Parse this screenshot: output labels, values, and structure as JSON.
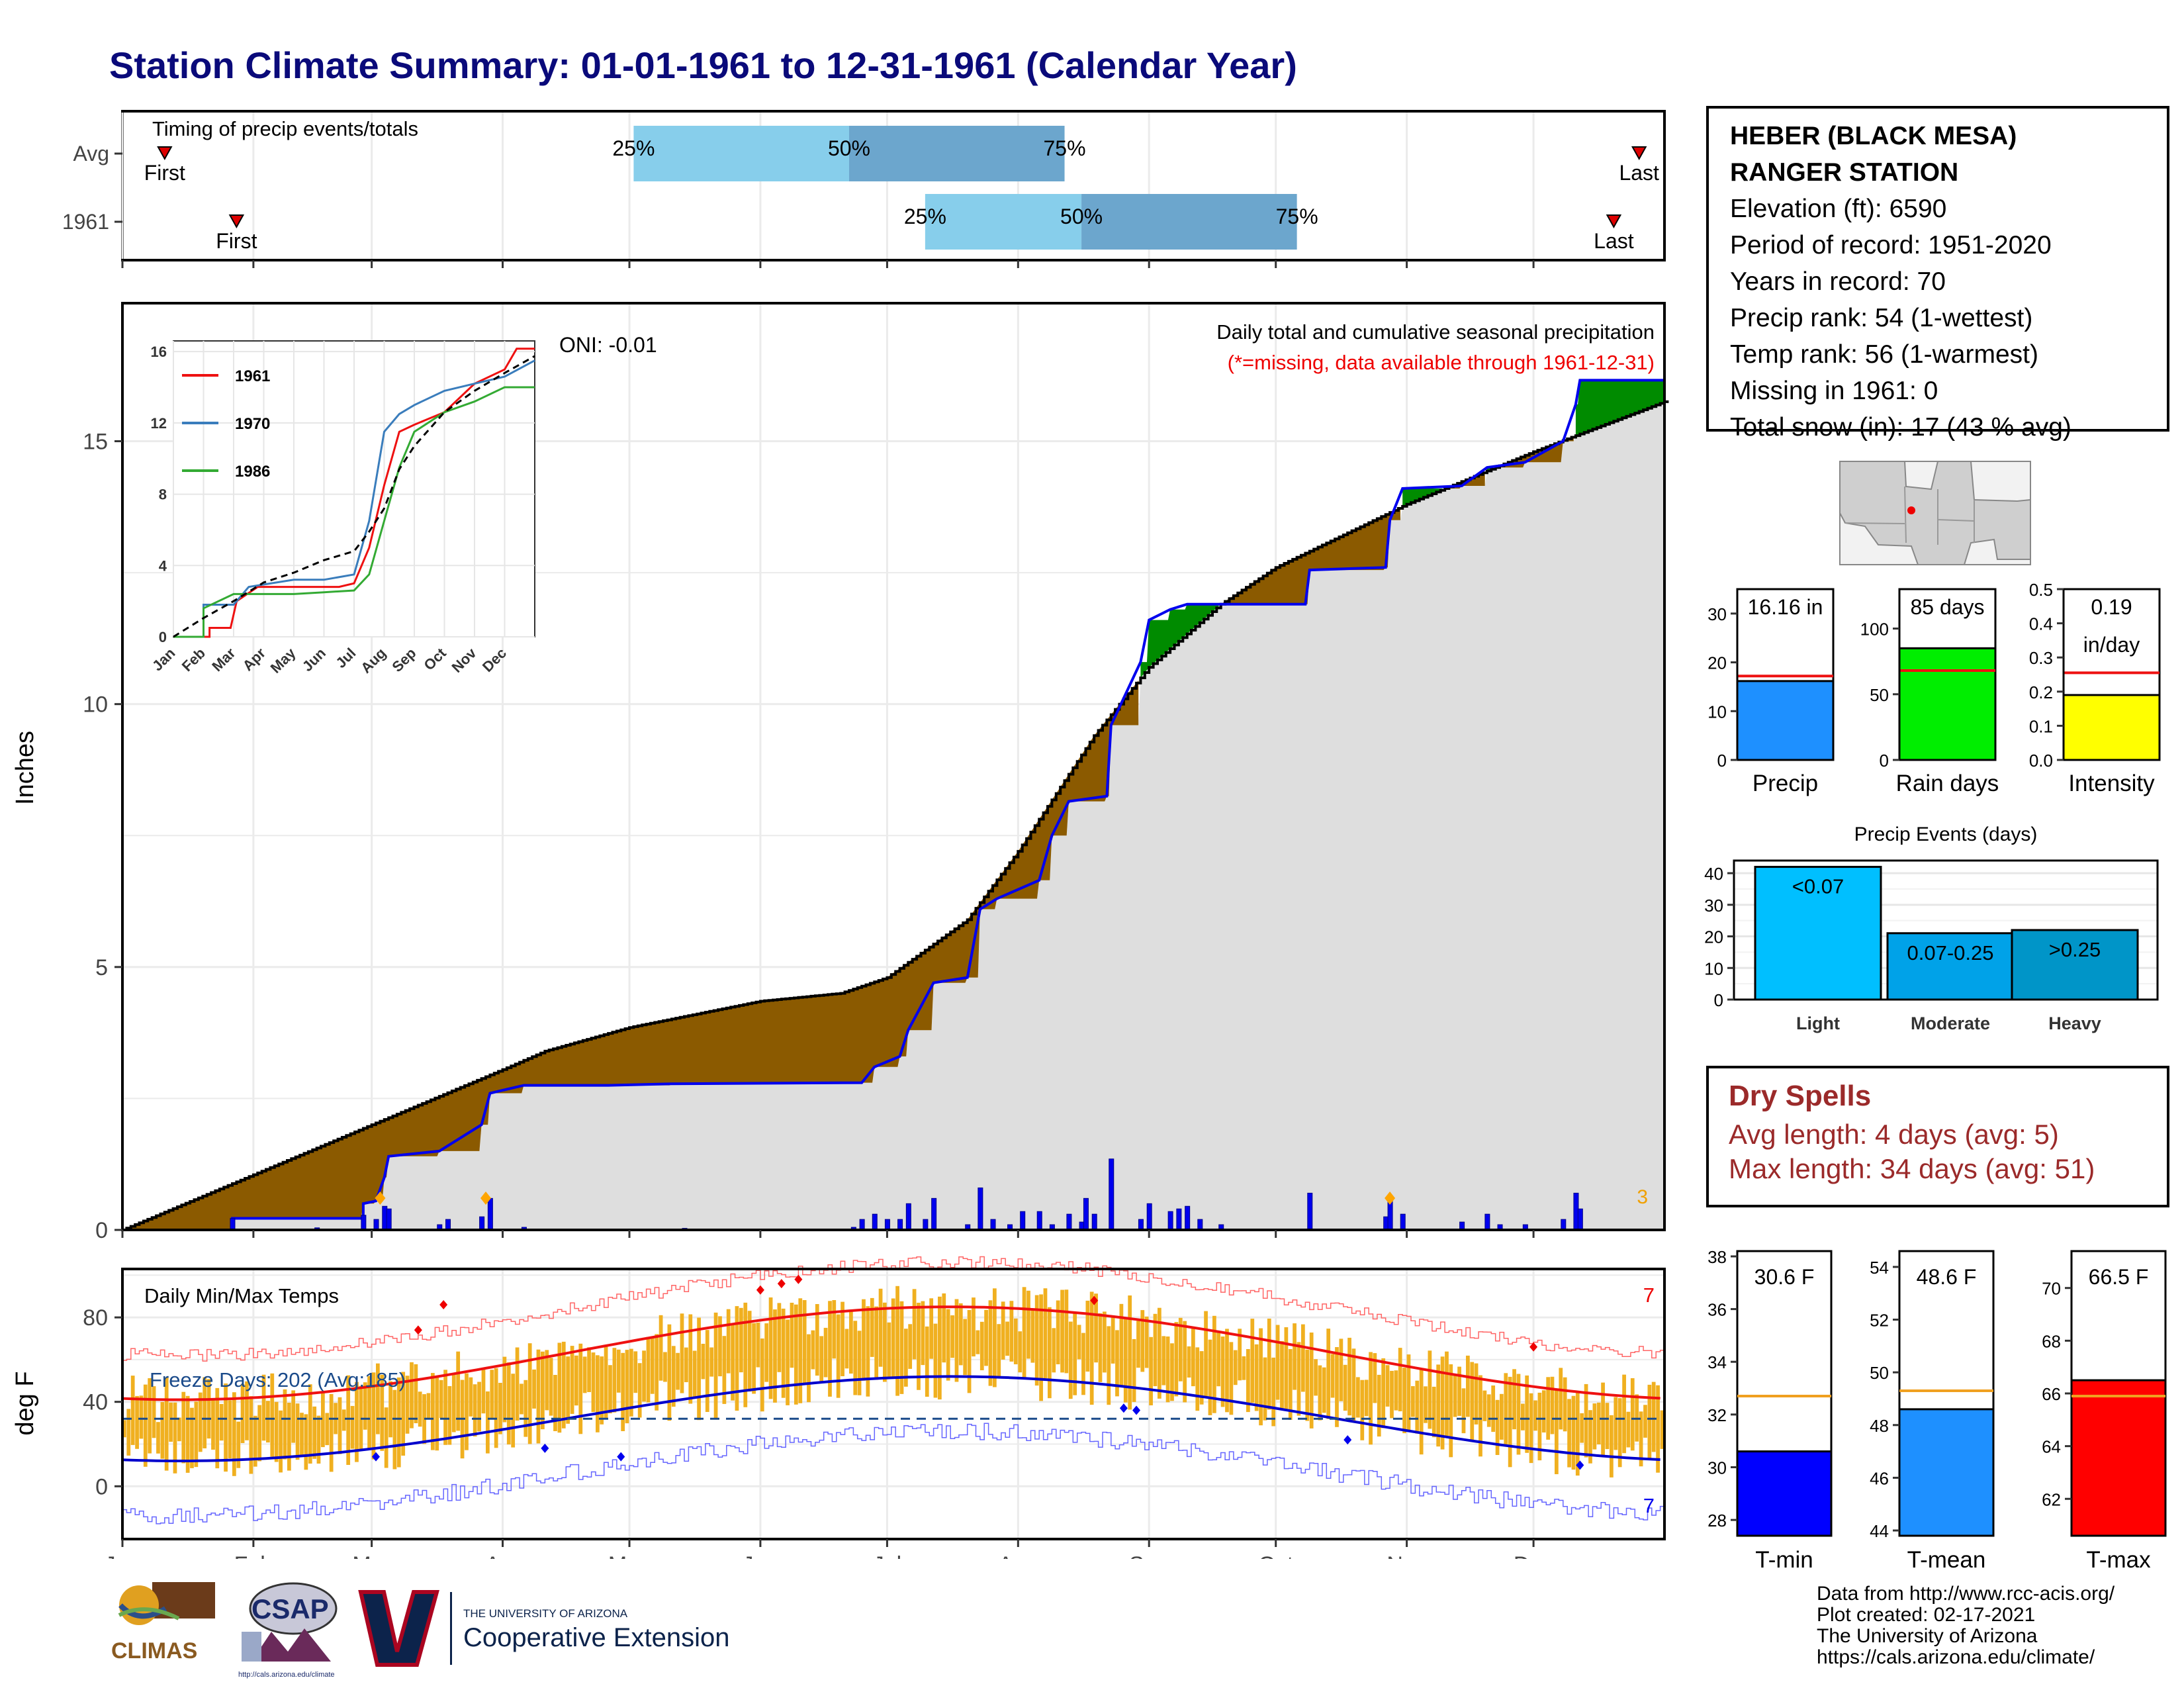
{
  "title": "Station Climate Summary: 01-01-1961 to 12-31-1961 (Calendar Year)",
  "colors": {
    "title": "#0a0a7a",
    "brown": "#8B5A00",
    "green": "#008B00",
    "gray_fill": "#dedede",
    "blue": "#0000ee",
    "orange_bar": "#f0b020",
    "red_line": "#ee1111",
    "light_blue": "#87ceeb",
    "mid_blue": "#6ca6cd",
    "dry": "#9b2a2a"
  },
  "timing": {
    "title": "Timing of precip events/totals",
    "rows": [
      {
        "label": "Avg",
        "first_label": "First",
        "last_label": "Last",
        "first_day": 10,
        "last_day": 359,
        "p25": 121,
        "p50": 172,
        "p75": 223,
        "p25_label": "25%",
        "p50_label": "50%",
        "p75_label": "75%"
      },
      {
        "label": "1961",
        "first_label": "First",
        "last_label": "Last",
        "first_day": 27,
        "last_day": 353,
        "p25": 190,
        "p50": 227,
        "p75": 278,
        "p25_label": "25%",
        "p50_label": "50%",
        "p75_label": "75%"
      }
    ]
  },
  "precip": {
    "ylabel": "Inches",
    "yticks": [
      "0",
      "5",
      "10",
      "15"
    ],
    "oni": "ONI: -0.01",
    "subtitle": "Daily total and cumulative seasonal precipitation",
    "missing_note": "(*=missing, data available through 1961-12-31)",
    "corner_count": "3",
    "ylim": [
      0,
      17.6
    ],
    "avg_cumulative": [
      {
        "d": 0,
        "v": 0
      },
      {
        "d": 31,
        "v": 1.05
      },
      {
        "d": 59,
        "v": 2.0
      },
      {
        "d": 90,
        "v": 3.05
      },
      {
        "d": 100,
        "v": 3.4
      },
      {
        "d": 120,
        "v": 3.85
      },
      {
        "d": 151,
        "v": 4.35
      },
      {
        "d": 170,
        "v": 4.5
      },
      {
        "d": 181,
        "v": 4.8
      },
      {
        "d": 200,
        "v": 5.9
      },
      {
        "d": 212,
        "v": 7.2
      },
      {
        "d": 230,
        "v": 9.4
      },
      {
        "d": 243,
        "v": 10.7
      },
      {
        "d": 260,
        "v": 11.9
      },
      {
        "d": 273,
        "v": 12.6
      },
      {
        "d": 304,
        "v": 13.8
      },
      {
        "d": 334,
        "v": 14.8
      },
      {
        "d": 365,
        "v": 15.75
      }
    ],
    "obs_cumulative": [
      {
        "d": 0,
        "v": 0
      },
      {
        "d": 26,
        "v": 0
      },
      {
        "d": 26,
        "v": 0.22
      },
      {
        "d": 57,
        "v": 0.22
      },
      {
        "d": 57,
        "v": 0.5
      },
      {
        "d": 60,
        "v": 0.55
      },
      {
        "d": 62,
        "v": 1.0
      },
      {
        "d": 63,
        "v": 1.4
      },
      {
        "d": 75,
        "v": 1.5
      },
      {
        "d": 85,
        "v": 2.0
      },
      {
        "d": 87,
        "v": 2.6
      },
      {
        "d": 95,
        "v": 2.75
      },
      {
        "d": 115,
        "v": 2.75
      },
      {
        "d": 130,
        "v": 2.78
      },
      {
        "d": 175,
        "v": 2.8
      },
      {
        "d": 178,
        "v": 3.1
      },
      {
        "d": 184,
        "v": 3.3
      },
      {
        "d": 186,
        "v": 3.8
      },
      {
        "d": 192,
        "v": 4.7
      },
      {
        "d": 200,
        "v": 4.8
      },
      {
        "d": 203,
        "v": 6.1
      },
      {
        "d": 207,
        "v": 6.3
      },
      {
        "d": 217,
        "v": 6.65
      },
      {
        "d": 220,
        "v": 7.5
      },
      {
        "d": 224,
        "v": 8.15
      },
      {
        "d": 233,
        "v": 8.25
      },
      {
        "d": 234,
        "v": 9.6
      },
      {
        "d": 241,
        "v": 10.8
      },
      {
        "d": 243,
        "v": 11.6
      },
      {
        "d": 248,
        "v": 11.8
      },
      {
        "d": 252,
        "v": 11.9
      },
      {
        "d": 280,
        "v": 11.9
      },
      {
        "d": 281,
        "v": 12.55
      },
      {
        "d": 299,
        "v": 12.6
      },
      {
        "d": 300,
        "v": 13.5
      },
      {
        "d": 303,
        "v": 14.1
      },
      {
        "d": 317,
        "v": 14.15
      },
      {
        "d": 323,
        "v": 14.5
      },
      {
        "d": 332,
        "v": 14.6
      },
      {
        "d": 341,
        "v": 15.0
      },
      {
        "d": 344,
        "v": 15.7
      },
      {
        "d": 345,
        "v": 16.16
      },
      {
        "d": 365,
        "v": 16.16
      }
    ],
    "daily": [
      {
        "d": 26,
        "v": 0.22
      },
      {
        "d": 46,
        "v": 0.04
      },
      {
        "d": 57,
        "v": 0.28
      },
      {
        "d": 60,
        "v": 0.2
      },
      {
        "d": 62,
        "v": 0.45
      },
      {
        "d": 63,
        "v": 0.4
      },
      {
        "d": 75,
        "v": 0.1
      },
      {
        "d": 77,
        "v": 0.2
      },
      {
        "d": 85,
        "v": 0.25
      },
      {
        "d": 87,
        "v": 0.6
      },
      {
        "d": 95,
        "v": 0.05
      },
      {
        "d": 133,
        "v": 0.03
      },
      {
        "d": 173,
        "v": 0.05
      },
      {
        "d": 175,
        "v": 0.2
      },
      {
        "d": 178,
        "v": 0.3
      },
      {
        "d": 181,
        "v": 0.2
      },
      {
        "d": 184,
        "v": 0.2
      },
      {
        "d": 186,
        "v": 0.5
      },
      {
        "d": 190,
        "v": 0.2
      },
      {
        "d": 192,
        "v": 0.6
      },
      {
        "d": 200,
        "v": 0.1
      },
      {
        "d": 203,
        "v": 0.8
      },
      {
        "d": 206,
        "v": 0.2
      },
      {
        "d": 210,
        "v": 0.1
      },
      {
        "d": 213,
        "v": 0.35
      },
      {
        "d": 217,
        "v": 0.35
      },
      {
        "d": 220,
        "v": 0.1
      },
      {
        "d": 224,
        "v": 0.3
      },
      {
        "d": 227,
        "v": 0.15
      },
      {
        "d": 228,
        "v": 0.6
      },
      {
        "d": 230,
        "v": 0.3
      },
      {
        "d": 234,
        "v": 1.35
      },
      {
        "d": 241,
        "v": 0.2
      },
      {
        "d": 243,
        "v": 0.5
      },
      {
        "d": 248,
        "v": 0.35
      },
      {
        "d": 250,
        "v": 0.4
      },
      {
        "d": 252,
        "v": 0.45
      },
      {
        "d": 255,
        "v": 0.2
      },
      {
        "d": 260,
        "v": 0.1
      },
      {
        "d": 281,
        "v": 0.7
      },
      {
        "d": 299,
        "v": 0.25
      },
      {
        "d": 300,
        "v": 0.6
      },
      {
        "d": 303,
        "v": 0.3
      },
      {
        "d": 317,
        "v": 0.15
      },
      {
        "d": 323,
        "v": 0.3
      },
      {
        "d": 326,
        "v": 0.1
      },
      {
        "d": 332,
        "v": 0.1
      },
      {
        "d": 341,
        "v": 0.2
      },
      {
        "d": 344,
        "v": 0.7
      },
      {
        "d": 345,
        "v": 0.4
      }
    ],
    "snow_markers": [
      61,
      86,
      300
    ],
    "inset": {
      "yticks": [
        "0",
        "4",
        "8",
        "12",
        "16"
      ],
      "months": [
        "Jan",
        "Feb",
        "Mar",
        "Apr",
        "May",
        "Jun",
        "Jul",
        "Aug",
        "Sep",
        "Oct",
        "Nov",
        "Dec"
      ],
      "series": [
        {
          "name": "1961",
          "color": "#ee1111",
          "pts": [
            [
              0,
              0
            ],
            [
              1.2,
              0
            ],
            [
              1.2,
              0.5
            ],
            [
              1.9,
              0.5
            ],
            [
              2.1,
              2.0
            ],
            [
              2.8,
              2.8
            ],
            [
              4,
              2.8
            ],
            [
              5.5,
              2.8
            ],
            [
              6,
              3.0
            ],
            [
              6.5,
              5.0
            ],
            [
              7,
              8.5
            ],
            [
              7.5,
              11.5
            ],
            [
              8,
              11.9
            ],
            [
              9,
              12.6
            ],
            [
              10,
              14.2
            ],
            [
              11,
              15.0
            ],
            [
              11.4,
              16.16
            ],
            [
              12,
              16.16
            ]
          ]
        },
        {
          "name": "1970",
          "color": "#3a7dbc",
          "pts": [
            [
              0,
              0
            ],
            [
              1,
              0
            ],
            [
              1,
              1.8
            ],
            [
              2,
              1.8
            ],
            [
              2.5,
              2.8
            ],
            [
              4,
              3.2
            ],
            [
              5,
              3.2
            ],
            [
              6,
              3.5
            ],
            [
              6.5,
              6.5
            ],
            [
              7,
              11.5
            ],
            [
              7.5,
              12.5
            ],
            [
              8,
              13.0
            ],
            [
              9,
              13.8
            ],
            [
              10,
              14.2
            ],
            [
              11,
              14.6
            ],
            [
              12,
              15.5
            ]
          ]
        },
        {
          "name": "1986",
          "color": "#33aa33",
          "pts": [
            [
              0,
              0
            ],
            [
              1,
              0
            ],
            [
              1,
              1.6
            ],
            [
              2,
              2.4
            ],
            [
              3,
              2.4
            ],
            [
              4,
              2.4
            ],
            [
              5,
              2.5
            ],
            [
              6,
              2.6
            ],
            [
              6.5,
              3.5
            ],
            [
              7,
              6.5
            ],
            [
              7.5,
              9.5
            ],
            [
              8,
              11.5
            ],
            [
              9,
              12.6
            ],
            [
              10,
              13.2
            ],
            [
              11,
              14.0
            ],
            [
              12,
              14.0
            ]
          ]
        }
      ],
      "avg_pts": [
        [
          0,
          0
        ],
        [
          1,
          1.05
        ],
        [
          2,
          2.0
        ],
        [
          3,
          3.05
        ],
        [
          4,
          3.6
        ],
        [
          5,
          4.3
        ],
        [
          6,
          4.8
        ],
        [
          6.5,
          5.9
        ],
        [
          7,
          7.2
        ],
        [
          7.5,
          9.4
        ],
        [
          8,
          10.7
        ],
        [
          9,
          12.6
        ],
        [
          10,
          13.8
        ],
        [
          11,
          14.8
        ],
        [
          12,
          15.75
        ]
      ]
    }
  },
  "temps": {
    "title": "Daily Min/Max Temps",
    "ylabel": "deg F",
    "yticks": [
      "0",
      "40",
      "80"
    ],
    "ylim": [
      -25,
      102
    ],
    "freeze_label": "Freeze Days: 202 (Avg:185)",
    "top_right": "7",
    "bottom_right": "7",
    "freeze_line": 32
  },
  "months": [
    "Jan",
    "Feb",
    "Mar",
    "Apr",
    "May",
    "Jun",
    "Jul",
    "Aug",
    "Sep",
    "Oct",
    "Nov",
    "Dec"
  ],
  "station": {
    "name1": "HEBER (BLACK MESA)",
    "name2": "RANGER STATION",
    "elevation": "Elevation (ft): 6590",
    "period": "Period of record: 1951-2020",
    "years": "Years in record: 70",
    "precip_rank": "Precip rank: 54 (1-wettest)",
    "temp_rank": "Temp rank: 56 (1-warmest)",
    "missing": "Missing in 1961: 0",
    "snow": "Total snow (in): 17 (43 % avg)"
  },
  "summary_bars": [
    {
      "label": "Precip",
      "value": 16.16,
      "avg": 17.2,
      "box": "16.16 in",
      "box2": "",
      "ticks": [
        "0",
        "10",
        "20",
        "30"
      ],
      "max": 35,
      "color": "#1e90ff"
    },
    {
      "label": "Rain days",
      "value": 85,
      "avg": 68,
      "box": "85 days",
      "box2": "",
      "ticks": [
        "0",
        "50",
        "100"
      ],
      "max": 130,
      "color": "#00ee00"
    },
    {
      "label": "Intensity",
      "value": 0.19,
      "avg": 0.255,
      "box": "0.19",
      "box2": "in/day",
      "ticks": [
        "0.0",
        "0.1",
        "0.2",
        "0.3",
        "0.4",
        "0.5"
      ],
      "max": 0.5,
      "color": "#ffff00"
    }
  ],
  "events": {
    "title": "Precip Events (days)",
    "ticks": [
      "0",
      "10",
      "20",
      "30",
      "40"
    ],
    "bars": [
      {
        "cat": "Light",
        "label": "<0.07",
        "value": 42,
        "color": "#00bfff"
      },
      {
        "cat": "Moderate",
        "label": "0.07-0.25",
        "value": 21,
        "color": "#00a2e8"
      },
      {
        "cat": "Heavy",
        "label": ">0.25",
        "value": 22,
        "color": "#0095c8"
      }
    ]
  },
  "dry": {
    "title": "Dry Spells",
    "avg": "Avg length: 4 days (avg: 5)",
    "max": "Max length: 34 days (avg: 51)"
  },
  "temp_bars": [
    {
      "label": "T-min",
      "value": 30.6,
      "avg": 32.7,
      "box": "30.6 F",
      "ticks": [
        "28",
        "30",
        "32",
        "34",
        "36",
        "38"
      ],
      "min": 27.4,
      "max": 38.2,
      "color": "#0000ff"
    },
    {
      "label": "T-mean",
      "value": 48.6,
      "avg": 49.3,
      "box": "48.6 F",
      "ticks": [
        "44",
        "46",
        "48",
        "50",
        "52",
        "54"
      ],
      "min": 43.8,
      "max": 54.6,
      "color": "#1e90ff"
    },
    {
      "label": "T-max",
      "value": 66.5,
      "avg": 65.9,
      "box": "66.5 F",
      "ticks": [
        "62",
        "64",
        "66",
        "68",
        "70"
      ],
      "min": 60.6,
      "max": 71.4,
      "color": "#ff0000"
    }
  ],
  "footer": {
    "l1": "Data from http://www.rcc-acis.org/",
    "l2": "Plot created: 02-17-2021",
    "l3": "The University of Arizona",
    "l4": "https://cals.arizona.edu/climate/"
  },
  "logos": {
    "climas": "CLIMAS",
    "csap": "CSAP",
    "csap_url": "http://cals.arizona.edu/climate",
    "ua_small": "THE UNIVERSITY OF ARIZONA",
    "ua_big": "Cooperative Extension"
  }
}
